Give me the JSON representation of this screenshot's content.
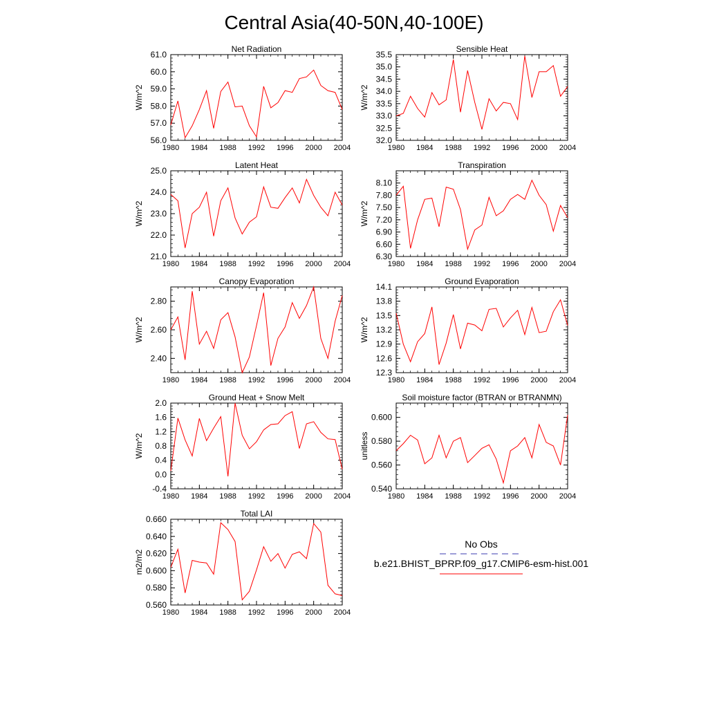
{
  "figure": {
    "title": "Central Asia(40-50N,40-100E)",
    "legend": {
      "obs_label": "No Obs",
      "model_label": "b.e21.BHIST_BPRP.f09_g17.CMIP6-esm-hist.001",
      "obs_color": "#3b3bb0",
      "model_color": "#ff0000"
    }
  },
  "chart_data": [
    {
      "type": "line",
      "title": "Net Radiation",
      "xlabel": "",
      "ylabel": "W/m^2",
      "x": [
        1980,
        1981,
        1982,
        1983,
        1984,
        1985,
        1986,
        1987,
        1988,
        1989,
        1990,
        1991,
        1992,
        1993,
        1994,
        1995,
        1996,
        1997,
        1998,
        1999,
        2000,
        2001,
        2002,
        2003,
        2004
      ],
      "xlim": [
        1980,
        2004
      ],
      "xticks": [
        "1980",
        "1984",
        "1988",
        "1992",
        "1996",
        "2000",
        "2004"
      ],
      "ylim": [
        56.0,
        61.0
      ],
      "yticks": [
        "56.0",
        "57.0",
        "58.0",
        "59.0",
        "60.0",
        "61.0"
      ],
      "series": [
        {
          "name": "b.e21.BHIST_BPRP.f09_g17.CMIP6-esm-hist.001",
          "color": "#ff0000",
          "values": [
            56.9,
            58.3,
            56.15,
            56.85,
            57.8,
            58.9,
            56.7,
            58.85,
            59.4,
            57.95,
            58.0,
            56.85,
            56.2,
            59.15,
            57.9,
            58.2,
            58.9,
            58.8,
            59.6,
            59.7,
            60.1,
            59.2,
            58.9,
            58.8,
            57.8
          ]
        }
      ]
    },
    {
      "type": "line",
      "title": "Sensible Heat",
      "xlabel": "",
      "ylabel": "W/m^2",
      "x": [
        1980,
        1981,
        1982,
        1983,
        1984,
        1985,
        1986,
        1987,
        1988,
        1989,
        1990,
        1991,
        1992,
        1993,
        1994,
        1995,
        1996,
        1997,
        1998,
        1999,
        2000,
        2001,
        2002,
        2003,
        2004
      ],
      "xlim": [
        1980,
        2004
      ],
      "xticks": [
        "1980",
        "1984",
        "1988",
        "1992",
        "1996",
        "2000",
        "2004"
      ],
      "ylim": [
        32.0,
        35.5
      ],
      "yticks": [
        "32.0",
        "32.5",
        "33.0",
        "33.5",
        "34.0",
        "34.5",
        "35.0",
        "35.5"
      ],
      "series": [
        {
          "name": "b.e21.BHIST_BPRP.f09_g17.CMIP6-esm-hist.001",
          "color": "#ff0000",
          "values": [
            33.0,
            33.1,
            33.8,
            33.3,
            32.95,
            33.95,
            33.45,
            33.65,
            35.3,
            33.15,
            34.85,
            33.55,
            32.45,
            33.7,
            33.2,
            33.55,
            33.5,
            32.85,
            35.45,
            33.75,
            34.8,
            34.8,
            35.05,
            33.8,
            34.2
          ]
        }
      ]
    },
    {
      "type": "line",
      "title": "Latent Heat",
      "xlabel": "",
      "ylabel": "W/m^2",
      "x": [
        1980,
        1981,
        1982,
        1983,
        1984,
        1985,
        1986,
        1987,
        1988,
        1989,
        1990,
        1991,
        1992,
        1993,
        1994,
        1995,
        1996,
        1997,
        1998,
        1999,
        2000,
        2001,
        2002,
        2003,
        2004
      ],
      "xlim": [
        1980,
        2004
      ],
      "xticks": [
        "1980",
        "1984",
        "1988",
        "1992",
        "1996",
        "2000",
        "2004"
      ],
      "ylim": [
        21.0,
        25.0
      ],
      "yticks": [
        "21.0",
        "22.0",
        "23.0",
        "24.0",
        "25.0"
      ],
      "series": [
        {
          "name": "b.e21.BHIST_BPRP.f09_g17.CMIP6-esm-hist.001",
          "color": "#ff0000",
          "values": [
            23.9,
            23.6,
            21.4,
            23.0,
            23.3,
            24.0,
            21.95,
            23.6,
            24.2,
            22.8,
            22.05,
            22.6,
            22.85,
            24.25,
            23.3,
            23.25,
            23.75,
            24.2,
            23.5,
            24.6,
            23.85,
            23.3,
            22.9,
            24.0,
            23.4
          ]
        }
      ]
    },
    {
      "type": "line",
      "title": "Transpiration",
      "xlabel": "",
      "ylabel": "W/m^2",
      "x": [
        1980,
        1981,
        1982,
        1983,
        1984,
        1985,
        1986,
        1987,
        1988,
        1989,
        1990,
        1991,
        1992,
        1993,
        1994,
        1995,
        1996,
        1997,
        1998,
        1999,
        2000,
        2001,
        2002,
        2003,
        2004
      ],
      "xlim": [
        1980,
        2004
      ],
      "xticks": [
        "1980",
        "1984",
        "1988",
        "1992",
        "1996",
        "2000",
        "2004"
      ],
      "ylim": [
        6.3,
        8.4
      ],
      "yticks": [
        "6.30",
        "6.60",
        "6.90",
        "7.20",
        "7.50",
        "7.80",
        "8.10"
      ],
      "series": [
        {
          "name": "b.e21.BHIST_BPRP.f09_g17.CMIP6-esm-hist.001",
          "color": "#ff0000",
          "values": [
            7.8,
            8.02,
            6.5,
            7.2,
            7.7,
            7.73,
            7.03,
            8.0,
            7.95,
            7.45,
            6.48,
            6.95,
            7.07,
            7.75,
            7.3,
            7.42,
            7.7,
            7.82,
            7.7,
            8.17,
            7.8,
            7.57,
            6.92,
            7.55,
            7.25
          ]
        }
      ]
    },
    {
      "type": "line",
      "title": "Canopy Evaporation",
      "xlabel": "",
      "ylabel": "W/m^2",
      "x": [
        1980,
        1981,
        1982,
        1983,
        1984,
        1985,
        1986,
        1987,
        1988,
        1989,
        1990,
        1991,
        1992,
        1993,
        1994,
        1995,
        1996,
        1997,
        1998,
        1999,
        2000,
        2001,
        2002,
        2003,
        2004
      ],
      "xlim": [
        1980,
        2004
      ],
      "xticks": [
        "1980",
        "1984",
        "1988",
        "1992",
        "1996",
        "2000",
        "2004"
      ],
      "ylim": [
        2.3,
        2.9
      ],
      "yticks": [
        "2.40",
        "2.60",
        "2.80"
      ],
      "series": [
        {
          "name": "b.e21.BHIST_BPRP.f09_g17.CMIP6-esm-hist.001",
          "color": "#ff0000",
          "values": [
            2.6,
            2.69,
            2.39,
            2.87,
            2.5,
            2.59,
            2.47,
            2.67,
            2.72,
            2.55,
            2.3,
            2.41,
            2.63,
            2.86,
            2.35,
            2.54,
            2.62,
            2.79,
            2.68,
            2.77,
            2.9,
            2.54,
            2.4,
            2.66,
            2.84
          ]
        }
      ]
    },
    {
      "type": "line",
      "title": "Ground Evaporation",
      "xlabel": "",
      "ylabel": "W/m^2",
      "x": [
        1980,
        1981,
        1982,
        1983,
        1984,
        1985,
        1986,
        1987,
        1988,
        1989,
        1990,
        1991,
        1992,
        1993,
        1994,
        1995,
        1996,
        1997,
        1998,
        1999,
        2000,
        2001,
        2002,
        2003,
        2004
      ],
      "xlim": [
        1980,
        2004
      ],
      "xticks": [
        "1980",
        "1984",
        "1988",
        "1992",
        "1996",
        "2000",
        "2004"
      ],
      "ylim": [
        12.3,
        14.1
      ],
      "yticks": [
        "12.3",
        "12.6",
        "12.9",
        "13.2",
        "13.5",
        "13.8",
        "14.1"
      ],
      "series": [
        {
          "name": "b.e21.BHIST_BPRP.f09_g17.CMIP6-esm-hist.001",
          "color": "#ff0000",
          "values": [
            13.55,
            12.9,
            12.53,
            12.95,
            13.12,
            13.68,
            12.47,
            12.92,
            13.52,
            12.8,
            13.34,
            13.3,
            13.18,
            13.63,
            13.65,
            13.26,
            13.45,
            13.61,
            13.1,
            13.67,
            13.14,
            13.17,
            13.58,
            13.83,
            13.29
          ]
        }
      ]
    },
    {
      "type": "line",
      "title": "Ground Heat + Snow Melt",
      "xlabel": "",
      "ylabel": "W/m^2",
      "x": [
        1980,
        1981,
        1982,
        1983,
        1984,
        1985,
        1986,
        1987,
        1988,
        1989,
        1990,
        1991,
        1992,
        1993,
        1994,
        1995,
        1996,
        1997,
        1998,
        1999,
        2000,
        2001,
        2002,
        2003,
        2004
      ],
      "xlim": [
        1980,
        2004
      ],
      "xticks": [
        "1980",
        "1984",
        "1988",
        "1992",
        "1996",
        "2000",
        "2004"
      ],
      "ylim": [
        -0.4,
        2.0
      ],
      "yticks": [
        "-0.4",
        "0.0",
        "0.4",
        "0.8",
        "1.2",
        "1.6",
        "2.0"
      ],
      "series": [
        {
          "name": "b.e21.BHIST_BPRP.f09_g17.CMIP6-esm-hist.001",
          "color": "#ff0000",
          "values": [
            0.1,
            1.58,
            0.97,
            0.52,
            1.57,
            0.95,
            1.3,
            1.62,
            -0.05,
            2.0,
            1.1,
            0.72,
            0.92,
            1.25,
            1.4,
            1.42,
            1.65,
            1.76,
            0.73,
            1.42,
            1.48,
            1.18,
            1.0,
            0.98,
            0.15
          ]
        }
      ]
    },
    {
      "type": "line",
      "title": "Soil moisture factor (BTRAN or BTRANMN)",
      "xlabel": "",
      "ylabel": "unitless",
      "x": [
        1980,
        1981,
        1982,
        1983,
        1984,
        1985,
        1986,
        1987,
        1988,
        1989,
        1990,
        1991,
        1992,
        1993,
        1994,
        1995,
        1996,
        1997,
        1998,
        1999,
        2000,
        2001,
        2002,
        2003,
        2004
      ],
      "xlim": [
        1980,
        2004
      ],
      "xticks": [
        "1980",
        "1984",
        "1988",
        "1992",
        "1996",
        "2000",
        "2004"
      ],
      "ylim": [
        0.54,
        0.612
      ],
      "yticks": [
        "0.540",
        "0.560",
        "0.580",
        "0.600"
      ],
      "series": [
        {
          "name": "b.e21.BHIST_BPRP.f09_g17.CMIP6-esm-hist.001",
          "color": "#ff0000",
          "values": [
            0.572,
            0.578,
            0.585,
            0.581,
            0.561,
            0.566,
            0.585,
            0.566,
            0.58,
            0.583,
            0.562,
            0.568,
            0.574,
            0.577,
            0.565,
            0.545,
            0.572,
            0.576,
            0.583,
            0.566,
            0.594,
            0.579,
            0.576,
            0.56,
            0.602
          ]
        }
      ]
    },
    {
      "type": "line",
      "title": "Total LAI",
      "xlabel": "",
      "ylabel": "m2/m2",
      "x": [
        1980,
        1981,
        1982,
        1983,
        1984,
        1985,
        1986,
        1987,
        1988,
        1989,
        1990,
        1991,
        1992,
        1993,
        1994,
        1995,
        1996,
        1997,
        1998,
        1999,
        2000,
        2001,
        2002,
        2003,
        2004
      ],
      "xlim": [
        1980,
        2004
      ],
      "xticks": [
        "1980",
        "1984",
        "1988",
        "1992",
        "1996",
        "2000",
        "2004"
      ],
      "ylim": [
        0.56,
        0.66
      ],
      "yticks": [
        "0.560",
        "0.580",
        "0.600",
        "0.620",
        "0.640",
        "0.660"
      ],
      "series": [
        {
          "name": "b.e21.BHIST_BPRP.f09_g17.CMIP6-esm-hist.001",
          "color": "#ff0000",
          "values": [
            0.604,
            0.625,
            0.574,
            0.612,
            0.61,
            0.609,
            0.596,
            0.656,
            0.648,
            0.634,
            0.566,
            0.576,
            0.601,
            0.628,
            0.611,
            0.62,
            0.603,
            0.619,
            0.622,
            0.614,
            0.655,
            0.645,
            0.583,
            0.573,
            0.571
          ]
        }
      ]
    }
  ]
}
